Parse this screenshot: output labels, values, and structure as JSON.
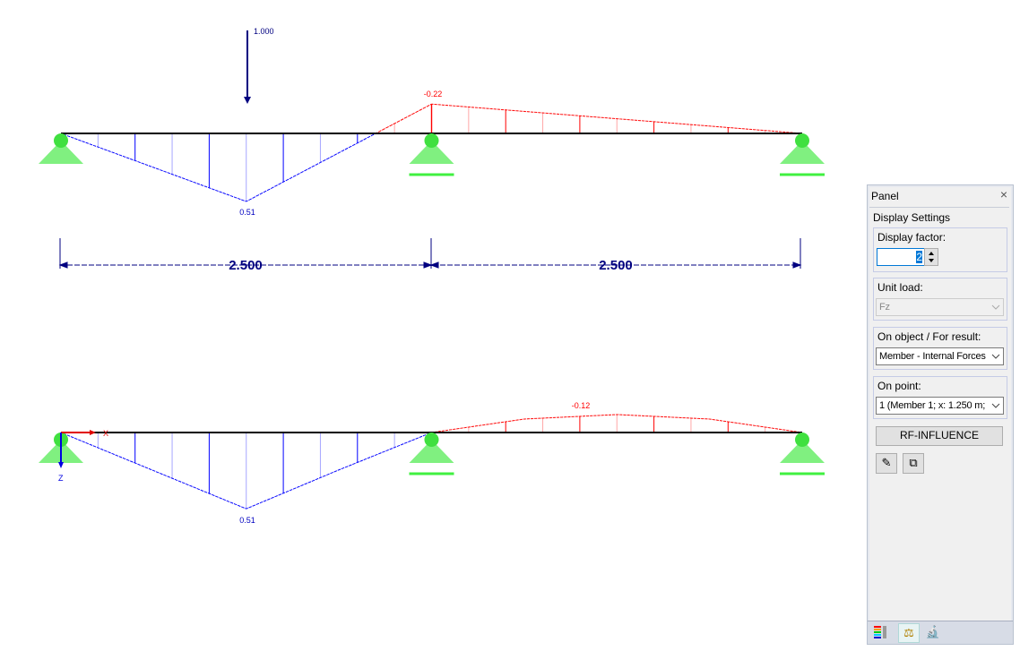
{
  "diagram_top": {
    "load_value": "1.000",
    "label_max": "0.51",
    "label_min": "-0.22",
    "stations_m": [
      0,
      1.25,
      2.5,
      5.0
    ],
    "values": [
      0,
      0.51,
      -0.22,
      0
    ],
    "dimension_labels": [
      "2.500",
      "2.500"
    ]
  },
  "diagram_bottom": {
    "label_max": "0.51",
    "label_min": "-0.12",
    "stations_m": [
      0,
      0.625,
      1.25,
      1.875,
      2.5,
      3.125,
      3.75,
      4.375,
      5.0
    ],
    "values": [
      0,
      0.255,
      0.51,
      0.25,
      0,
      -0.09,
      -0.12,
      -0.09,
      0
    ],
    "axis_x": "X",
    "axis_z": "Z"
  },
  "colors": {
    "positive": "#0000ff",
    "negative": "#ff0000",
    "support": "#80f080",
    "beam": "#000000",
    "load": "#000080"
  },
  "panel": {
    "title": "Panel",
    "close": "×",
    "section": "Display Settings",
    "display_factor_label": "Display factor:",
    "display_factor_value": "2",
    "unit_load_label": "Unit load:",
    "unit_load_value": "Fz",
    "on_object_label": "On object / For result:",
    "on_object_value": "Member - Internal Forces",
    "on_point_label": "On point:",
    "on_point_value": "1 (Member 1; x: 1.250 m;",
    "rf_button": "RF-INFLUENCE",
    "icons": [
      "edit-icon",
      "export-icon"
    ],
    "tabs": [
      "color-scale-icon",
      "balance-icon",
      "microscope-icon"
    ]
  }
}
